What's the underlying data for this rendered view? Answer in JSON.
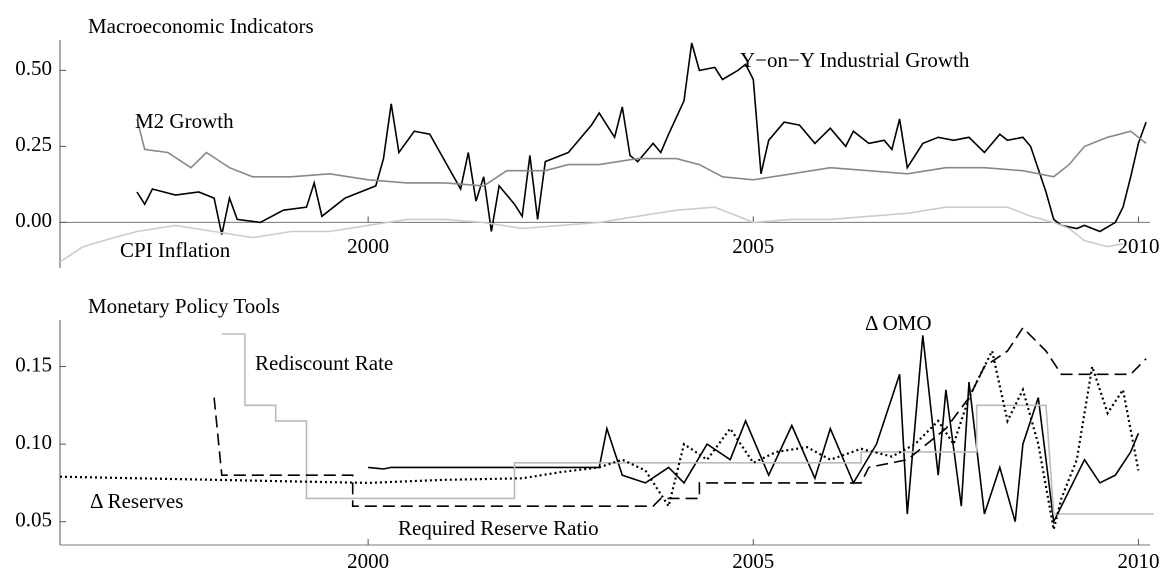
{
  "chart_data": [
    {
      "type": "line",
      "title": "Macroeconomic Indicators",
      "xlim": [
        1996,
        2010.15
      ],
      "xticks": [
        2000,
        2005,
        2010
      ],
      "ylim": [
        -0.15,
        0.6
      ],
      "yticks": [
        {
          "value": 0,
          "label": "0.00"
        },
        {
          "value": 0.25,
          "label": "0.25"
        },
        {
          "value": 0.5,
          "label": "0.50"
        }
      ],
      "series": [
        {
          "name": "Y−on−Y Industrial Growth",
          "color": "#000000",
          "style": "solid",
          "x": [
            1997.0,
            1997.1,
            1997.2,
            1997.5,
            1997.8,
            1998.0,
            1998.1,
            1998.2,
            1998.3,
            1998.6,
            1998.9,
            1999.2,
            1999.3,
            1999.4,
            1999.7,
            1999.9,
            2000.1,
            2000.2,
            2000.3,
            2000.4,
            2000.6,
            2000.8,
            2001.0,
            2001.2,
            2001.3,
            2001.4,
            2001.5,
            2001.6,
            2001.7,
            2001.9,
            2002.0,
            2002.1,
            2002.2,
            2002.3,
            2002.6,
            2002.9,
            2003.0,
            2003.2,
            2003.3,
            2003.4,
            2003.5,
            2003.7,
            2003.8,
            2003.9,
            2004.1,
            2004.2,
            2004.3,
            2004.5,
            2004.6,
            2004.8,
            2004.9,
            2005.0,
            2005.1,
            2005.2,
            2005.4,
            2005.6,
            2005.8,
            2006.0,
            2006.2,
            2006.3,
            2006.5,
            2006.7,
            2006.8,
            2006.9,
            2007.0,
            2007.2,
            2007.4,
            2007.6,
            2007.8,
            2008.0,
            2008.2,
            2008.3,
            2008.5,
            2008.6,
            2008.8,
            2008.9,
            2009.0,
            2009.2,
            2009.3,
            2009.5,
            2009.7,
            2009.8,
            2009.9,
            2010.0,
            2010.1
          ],
          "values": [
            0.1,
            0.06,
            0.11,
            0.09,
            0.1,
            0.08,
            -0.04,
            0.08,
            0.01,
            0.0,
            0.04,
            0.05,
            0.13,
            0.02,
            0.08,
            0.1,
            0.12,
            0.21,
            0.39,
            0.23,
            0.3,
            0.29,
            0.2,
            0.11,
            0.23,
            0.07,
            0.15,
            -0.03,
            0.12,
            0.06,
            0.02,
            0.22,
            0.01,
            0.2,
            0.23,
            0.32,
            0.36,
            0.28,
            0.38,
            0.22,
            0.2,
            0.26,
            0.23,
            0.29,
            0.4,
            0.59,
            0.5,
            0.51,
            0.47,
            0.5,
            0.52,
            0.47,
            0.16,
            0.27,
            0.33,
            0.32,
            0.26,
            0.31,
            0.25,
            0.3,
            0.26,
            0.27,
            0.24,
            0.34,
            0.18,
            0.26,
            0.28,
            0.27,
            0.28,
            0.23,
            0.29,
            0.27,
            0.28,
            0.25,
            0.1,
            0.01,
            -0.01,
            -0.02,
            -0.01,
            -0.03,
            0.0,
            0.05,
            0.15,
            0.26,
            0.33
          ]
        },
        {
          "name": "M2 Growth",
          "color": "#888888",
          "style": "solid",
          "x": [
            1997.0,
            1997.1,
            1997.4,
            1997.7,
            1997.9,
            1998.2,
            1998.5,
            1999.0,
            1999.5,
            2000.0,
            2000.5,
            2001.0,
            2001.5,
            2001.8,
            2002.3,
            2002.6,
            2003.0,
            2003.5,
            2004.0,
            2004.3,
            2004.6,
            2005.0,
            2005.5,
            2006.0,
            2006.5,
            2007.0,
            2007.5,
            2008.0,
            2008.5,
            2008.9,
            2009.1,
            2009.3,
            2009.6,
            2009.9,
            2010.1
          ],
          "values": [
            0.34,
            0.24,
            0.23,
            0.18,
            0.23,
            0.18,
            0.15,
            0.15,
            0.16,
            0.14,
            0.13,
            0.13,
            0.12,
            0.17,
            0.17,
            0.19,
            0.19,
            0.21,
            0.21,
            0.19,
            0.15,
            0.14,
            0.16,
            0.18,
            0.17,
            0.16,
            0.18,
            0.18,
            0.17,
            0.15,
            0.19,
            0.25,
            0.28,
            0.3,
            0.26
          ]
        },
        {
          "name": "CPI Inflation",
          "color": "#cccccc",
          "style": "solid",
          "x": [
            1996.0,
            1996.3,
            1996.7,
            1997.0,
            1997.5,
            1998.0,
            1998.5,
            1999.0,
            1999.5,
            2000.0,
            2000.5,
            2001.0,
            2001.5,
            2002.0,
            2002.5,
            2003.0,
            2003.5,
            2004.0,
            2004.5,
            2004.8,
            2005.0,
            2005.5,
            2006.0,
            2006.5,
            2007.0,
            2007.5,
            2008.0,
            2008.3,
            2008.6,
            2008.9,
            2009.1,
            2009.3,
            2009.6,
            2009.8
          ],
          "values": [
            -0.13,
            -0.08,
            -0.05,
            -0.03,
            -0.01,
            -0.03,
            -0.05,
            -0.03,
            -0.03,
            -0.01,
            0.01,
            0.01,
            0.0,
            -0.02,
            -0.01,
            0.0,
            0.02,
            0.04,
            0.05,
            0.02,
            0.0,
            0.01,
            0.01,
            0.02,
            0.03,
            0.05,
            0.05,
            0.05,
            0.02,
            0.0,
            -0.02,
            -0.06,
            -0.08,
            -0.07
          ]
        }
      ]
    },
    {
      "type": "line",
      "title": "Monetary Policy Tools",
      "xlim": [
        1996,
        2010.15
      ],
      "xticks": [
        2000,
        2005,
        2010
      ],
      "ylim": [
        0.035,
        0.18
      ],
      "yticks": [
        0.05,
        {
          "value": 0.1,
          "label": "0.10"
        },
        0.15
      ],
      "series": [
        {
          "name": "Δ OMO",
          "color": "#000000",
          "style": "solid",
          "x": [
            2000.0,
            2000.2,
            2000.3,
            2002.5,
            2003.0,
            2003.1,
            2003.3,
            2003.6,
            2003.9,
            2004.1,
            2004.4,
            2004.7,
            2004.9,
            2005.2,
            2005.5,
            2005.8,
            2006.0,
            2006.3,
            2006.6,
            2006.9,
            2007.0,
            2007.2,
            2007.4,
            2007.5,
            2007.7,
            2007.8,
            2008.0,
            2008.2,
            2008.4,
            2008.5,
            2008.7,
            2008.9,
            2009.1,
            2009.3,
            2009.5,
            2009.7,
            2009.9,
            2010.0
          ],
          "values": [
            0.085,
            0.084,
            0.085,
            0.085,
            0.085,
            0.11,
            0.08,
            0.075,
            0.085,
            0.075,
            0.1,
            0.09,
            0.115,
            0.08,
            0.112,
            0.078,
            0.11,
            0.075,
            0.1,
            0.145,
            0.055,
            0.17,
            0.08,
            0.135,
            0.06,
            0.14,
            0.055,
            0.085,
            0.05,
            0.1,
            0.13,
            0.05,
            0.07,
            0.09,
            0.075,
            0.08,
            0.095,
            0.107
          ]
        },
        {
          "name": "Rediscount Rate",
          "color": "#bbbbbb",
          "style": "solid",
          "x": [
            1998.1,
            1998.4,
            1998.4,
            1998.8,
            1998.8,
            1999.2,
            1999.2,
            2001.9,
            2001.9,
            2006.4,
            2006.4,
            2007.9,
            2007.9,
            2008.8,
            2008.9,
            2010.2
          ],
          "values": [
            0.171,
            0.171,
            0.125,
            0.125,
            0.115,
            0.115,
            0.065,
            0.065,
            0.088,
            0.088,
            0.095,
            0.095,
            0.125,
            0.125,
            0.055,
            0.055
          ]
        },
        {
          "name": "Δ Reserves",
          "color": "#000000",
          "style": "dotted",
          "x": [
            1996.0,
            1997.0,
            1998.0,
            1999.0,
            2000.0,
            2001.0,
            2002.0,
            2002.5,
            2003.0,
            2003.3,
            2003.6,
            2003.9,
            2004.1,
            2004.4,
            2004.7,
            2005.0,
            2005.3,
            2005.7,
            2006.0,
            2006.4,
            2006.8,
            2007.1,
            2007.4,
            2007.6,
            2007.8,
            2008.1,
            2008.3,
            2008.5,
            2008.7,
            2008.9,
            2009.0,
            2009.2,
            2009.4,
            2009.6,
            2009.8,
            2010.0
          ],
          "values": [
            0.079,
            0.078,
            0.077,
            0.076,
            0.075,
            0.077,
            0.078,
            0.082,
            0.085,
            0.09,
            0.083,
            0.06,
            0.1,
            0.09,
            0.11,
            0.088,
            0.095,
            0.098,
            0.09,
            0.097,
            0.092,
            0.1,
            0.115,
            0.1,
            0.13,
            0.16,
            0.115,
            0.135,
            0.1,
            0.045,
            0.065,
            0.09,
            0.15,
            0.12,
            0.135,
            0.083
          ]
        },
        {
          "name": "Required Reserve Ratio",
          "color": "#000000",
          "style": "dashed",
          "x": [
            1998.0,
            1998.1,
            1999.8,
            1999.8,
            2003.7,
            2003.8,
            2004.3,
            2004.3,
            2006.4,
            2006.5,
            2007.0,
            2007.5,
            2007.8,
            2008.0,
            2008.3,
            2008.5,
            2008.8,
            2009.0,
            2009.9,
            2010.1
          ],
          "values": [
            0.13,
            0.08,
            0.08,
            0.06,
            0.06,
            0.065,
            0.065,
            0.075,
            0.075,
            0.085,
            0.09,
            0.11,
            0.13,
            0.15,
            0.16,
            0.175,
            0.16,
            0.145,
            0.145,
            0.155
          ]
        }
      ]
    }
  ]
}
